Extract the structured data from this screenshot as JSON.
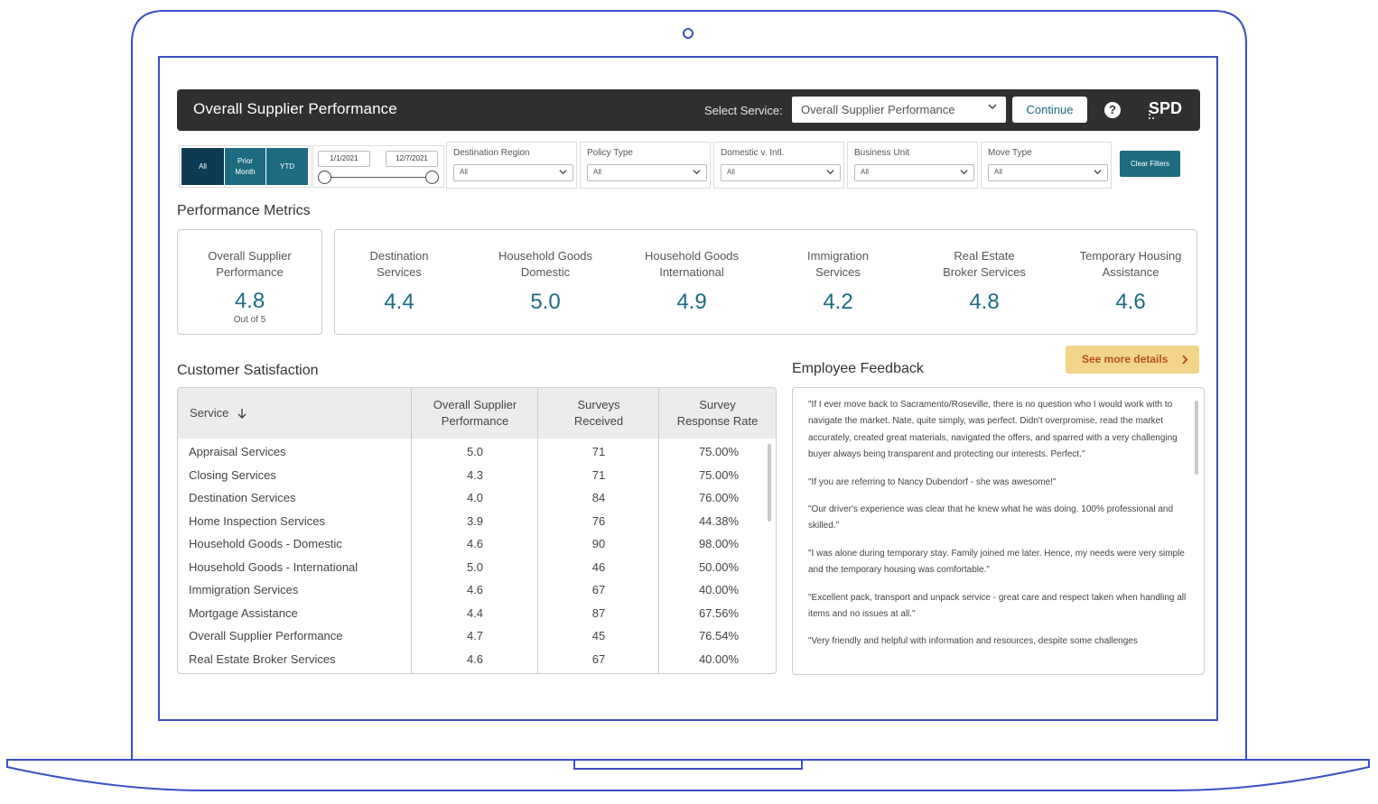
{
  "header": {
    "title": "Overall Supplier Performance",
    "select_service_label": "Select Service:",
    "select_service_value": "Overall Supplier Performance",
    "continue_label": "Continue",
    "help_label": "?",
    "logo": "SPD"
  },
  "filters": {
    "periods": [
      "All",
      "Prior Month",
      "YTD"
    ],
    "date_start": "1/1/2021",
    "date_end": "12/7/2021",
    "dropdowns": [
      {
        "label": "Destination Region",
        "value": "All"
      },
      {
        "label": "Policy Type",
        "value": "All"
      },
      {
        "label": "Domestic v. Intl.",
        "value": "All"
      },
      {
        "label": "Business Unit",
        "value": "All"
      },
      {
        "label": "Move Type",
        "value": "All"
      }
    ],
    "clear_label": "Clear Filters"
  },
  "performance": {
    "heading": "Performance Metrics",
    "overall": {
      "label": "Overall Supplier Performance",
      "value": "4.8",
      "sub": "Out of 5"
    },
    "metrics": [
      {
        "label": "Destination Services",
        "value": "4.4"
      },
      {
        "label": "Household Goods Domestic",
        "value": "5.0"
      },
      {
        "label": "Household Goods International",
        "value": "4.9"
      },
      {
        "label": "Immigration Services",
        "value": "4.2"
      },
      {
        "label": "Real Estate Broker Services",
        "value": "4.8"
      },
      {
        "label": "Temporary Housing Assistance",
        "value": "4.6"
      }
    ]
  },
  "customer_satisfaction": {
    "heading": "Customer Satisfaction",
    "columns": [
      "Service",
      "Overall Supplier Performance",
      "Surveys Received",
      "Survey Response Rate"
    ],
    "rows": [
      [
        "Appraisal Services",
        "5.0",
        "71",
        "75.00%"
      ],
      [
        "Closing Services",
        "4.3",
        "71",
        "75.00%"
      ],
      [
        "Destination Services",
        "4.0",
        "84",
        "76.00%"
      ],
      [
        "Home Inspection Services",
        "3.9",
        "76",
        "44.38%"
      ],
      [
        "Household Goods - Domestic",
        "4.6",
        "90",
        "98.00%"
      ],
      [
        "Household Goods - International",
        "5.0",
        "46",
        "50.00%"
      ],
      [
        "Immigration Services",
        "4.6",
        "67",
        "40.00%"
      ],
      [
        "Mortgage Assistance",
        "4.4",
        "87",
        "67.56%"
      ],
      [
        "Overall Supplier Performance",
        "4.7",
        "45",
        "76.54%"
      ],
      [
        "Real Estate Broker Services",
        "4.6",
        "67",
        "40.00%"
      ]
    ]
  },
  "employee_feedback": {
    "heading": "Employee Feedback",
    "see_more_label": "See more details",
    "quotes": [
      "\"If I ever move back to Sacramento/Roseville, there is no question who I would work with to navigate the market.  Nate, quite simply, was perfect.  Didn't overpromise, read the market accurately, created great materials, navigated the offers, and sparred with a very challenging buyer always being transparent and protecting our interests.  Perfect.\"",
      "\"If you are referring to Nancy Dubendorf - she was awesome!\"",
      "\"Our driver's experience was clear that he knew what he was doing.  100% professional and skilled.\"",
      "\"I was alone during temporary stay. Family joined me later. Hence, my needs were very simple and the temporary housing was comfortable.\"",
      "\"Excellent pack, transport and unpack service - great care and respect taken when handling all items and no issues at all.\"",
      "\"Very friendly and helpful with information and resources, despite some challenges"
    ]
  },
  "colors": {
    "teal": "#1e6b80",
    "navy": "#0e3b53",
    "header_bg": "#2f2f2f",
    "laptop_outline": "#3a4fc7",
    "see_more_bg": "#f2d48b"
  }
}
